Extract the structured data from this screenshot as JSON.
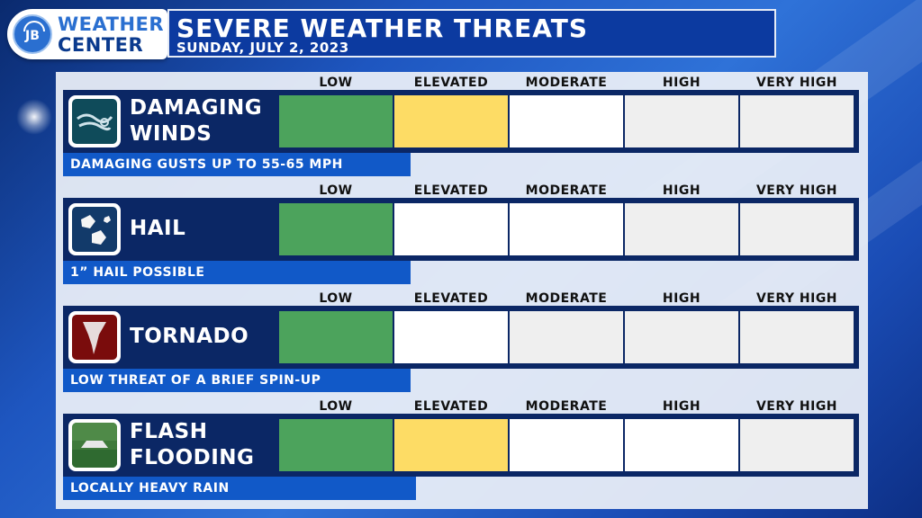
{
  "header": {
    "logo_line1": "WEATHER",
    "logo_line2": "CENTER",
    "logo_monogram": "JB",
    "title": "SEVERE WEATHER THREATS",
    "date": "SUNDAY, JULY 2, 2023"
  },
  "levels": [
    "LOW",
    "ELEVATED",
    "MODERATE",
    "HIGH",
    "VERY HIGH"
  ],
  "colors": {
    "low": "#4ca35c",
    "elevated": "#fddc65",
    "active": "#ffffff",
    "inactive": "#efefef",
    "bar": "#0b2765",
    "desc": "#1159c8"
  },
  "threats": [
    {
      "name_line1": "DAMAGING",
      "name_line2": "WINDS",
      "icon": "wind-icon",
      "description": "DAMAGING GUSTS UP TO 55-65 MPH",
      "cells": [
        "low",
        "elevated",
        "active",
        "inactive",
        "inactive"
      ]
    },
    {
      "name_line1": "HAIL",
      "name_line2": "",
      "icon": "hail-icon",
      "description": "1” HAIL POSSIBLE",
      "cells": [
        "low",
        "active",
        "active",
        "inactive",
        "inactive"
      ]
    },
    {
      "name_line1": "TORNADO",
      "name_line2": "",
      "icon": "tornado-icon",
      "description": "LOW THREAT OF A BRIEF SPIN-UP",
      "cells": [
        "low",
        "active",
        "inactive",
        "inactive",
        "inactive"
      ]
    },
    {
      "name_line1": "FLASH",
      "name_line2": "FLOODING",
      "icon": "flood-icon",
      "description": "LOCALLY HEAVY RAIN",
      "cells": [
        "low",
        "elevated",
        "active",
        "active",
        "inactive"
      ]
    }
  ]
}
